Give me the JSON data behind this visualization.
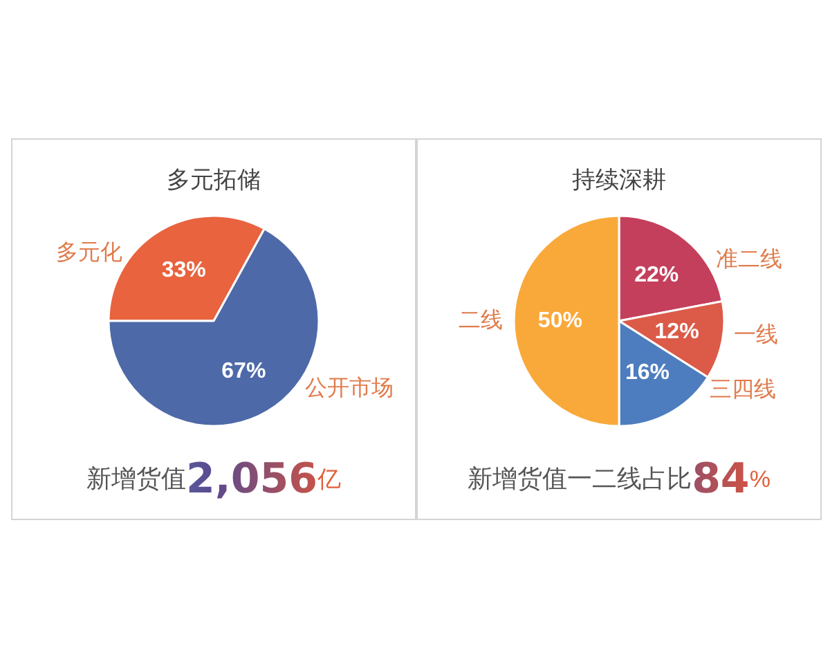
{
  "chart_data": [
    {
      "type": "pie",
      "title": "多元拓储",
      "categories": [
        "多元化",
        "公开市场"
      ],
      "values": [
        33,
        67
      ],
      "colors": [
        "#e8633e",
        "#4d69a8"
      ],
      "value_labels": [
        "33%",
        "67%"
      ],
      "annotations": [
        "新增货值2,056亿"
      ]
    },
    {
      "type": "pie",
      "title": "持续深耕",
      "categories": [
        "准二线",
        "一线",
        "三四线",
        "二线"
      ],
      "values": [
        22,
        12,
        16,
        50
      ],
      "colors": [
        "#c43f5c",
        "#dc5a48",
        "#4d7dbf",
        "#f9a93a"
      ],
      "value_labels": [
        "22%",
        "12%",
        "16%",
        "50%"
      ],
      "annotations": [
        "新增货值一二线占比84%"
      ]
    }
  ]
}
